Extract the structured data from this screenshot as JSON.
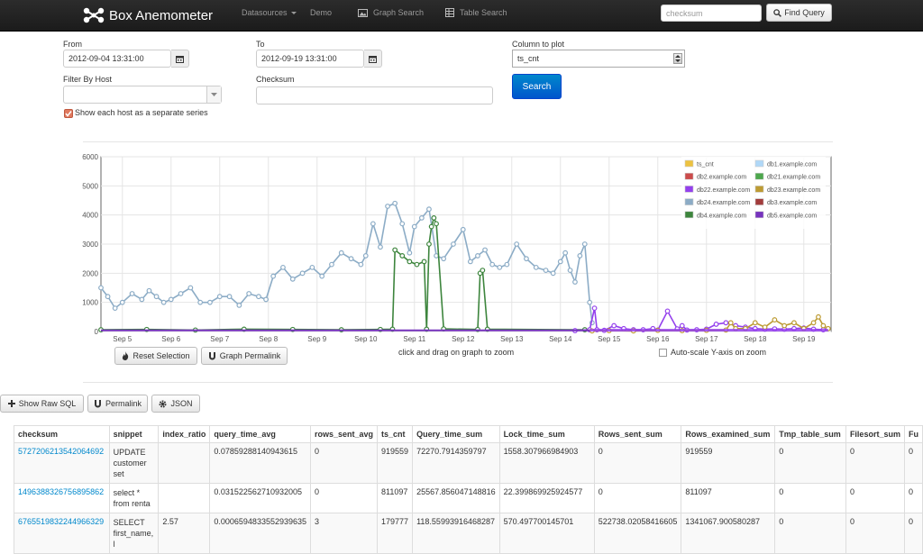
{
  "navbar": {
    "brand": "Box Anemometer",
    "items": [
      {
        "label": "Datasources",
        "dropdown": true
      },
      {
        "label": "Demo"
      },
      {
        "label": "Graph Search",
        "icon": "image-icon"
      },
      {
        "label": "Table Search",
        "icon": "table-icon"
      }
    ],
    "search_placeholder": "checksum",
    "find_label": "Find Query"
  },
  "form": {
    "from_label": "From",
    "from_value": "2012-09-04 13:31:00",
    "to_label": "To",
    "to_value": "2012-09-19 13:31:00",
    "column_label": "Column to plot",
    "column_value": "ts_cnt",
    "filter_label": "Filter By Host",
    "filter_value": "",
    "checksum_label": "Checksum",
    "checksum_value": "",
    "search_label": "Search",
    "separate_series_label": "Show each host as a separate series",
    "separate_series_checked": true
  },
  "chart_data": {
    "type": "line",
    "y_ticks": [
      "0",
      "1000",
      "2000",
      "3000",
      "4000",
      "5000",
      "6000"
    ],
    "ylim": [
      0,
      6000
    ],
    "x_ticks": [
      "Sep 5",
      "Sep 6",
      "Sep 7",
      "Sep 8",
      "Sep 9",
      "Sep 10",
      "Sep 11",
      "Sep 12",
      "Sep 13",
      "Sep 14",
      "Sep 15",
      "Sep 16",
      "Sep 17",
      "Sep 18",
      "Sep 19"
    ],
    "xlim": [
      "2012-09-04 13:31",
      "2012-09-19 13:31"
    ],
    "grid": true,
    "legend_placement": "top-right",
    "legend": [
      {
        "name": "ts_cnt",
        "color": "#edc240"
      },
      {
        "name": "db1.example.com",
        "color": "#afd8f8"
      },
      {
        "name": "db2.example.com",
        "color": "#cb4b4b"
      },
      {
        "name": "db21.example.com",
        "color": "#4da74d"
      },
      {
        "name": "db22.example.com",
        "color": "#9440ed"
      },
      {
        "name": "db23.example.com",
        "color": "#bd9b33"
      },
      {
        "name": "db24.example.com",
        "color": "#8cacc6"
      },
      {
        "name": "db3.example.com",
        "color": "#a23c3c"
      },
      {
        "name": "db4.example.com",
        "color": "#3d853d"
      },
      {
        "name": "db5.example.com",
        "color": "#7633bd"
      }
    ],
    "series": [
      {
        "name": "db24.example.com",
        "color": "#8cacc6",
        "x": [
          4.56,
          4.7,
          4.85,
          5.0,
          5.2,
          5.4,
          5.55,
          5.7,
          5.85,
          6.0,
          6.2,
          6.4,
          6.6,
          6.8,
          7.0,
          7.2,
          7.4,
          7.6,
          7.8,
          7.95,
          8.1,
          8.3,
          8.5,
          8.7,
          8.9,
          9.1,
          9.3,
          9.5,
          9.7,
          9.9,
          10.0,
          10.15,
          10.3,
          10.45,
          10.6,
          10.75,
          10.9,
          11.0,
          11.15,
          11.3,
          11.45,
          11.6,
          11.8,
          12.0,
          12.15,
          12.3,
          12.45,
          12.6,
          12.75,
          12.9,
          13.1,
          13.3,
          13.5,
          13.7,
          13.85,
          14.0,
          14.1,
          14.2,
          14.3,
          14.4,
          14.5,
          14.6,
          14.65
        ],
        "y": [
          1500,
          1200,
          800,
          1000,
          1300,
          1100,
          1400,
          1200,
          1000,
          1100,
          1300,
          1500,
          1000,
          1000,
          1200,
          1200,
          900,
          1300,
          1200,
          1100,
          1900,
          2200,
          1800,
          2000,
          2200,
          1900,
          2300,
          2700,
          2500,
          2300,
          2600,
          3700,
          2900,
          4300,
          4400,
          3700,
          2700,
          3600,
          3900,
          4200,
          2600,
          2500,
          3000,
          3500,
          2400,
          2600,
          2800,
          2300,
          2200,
          2300,
          3000,
          2500,
          2200,
          2100,
          2000,
          2400,
          2700,
          2100,
          1700,
          2600,
          3000,
          1000,
          300
        ]
      },
      {
        "name": "db4.example.com",
        "color": "#3d853d",
        "x": [
          4.56,
          5.5,
          6.5,
          7.5,
          8.5,
          9.5,
          10.3,
          10.55,
          10.6,
          10.75,
          10.9,
          11.05,
          11.2,
          11.25,
          11.3,
          11.35,
          11.4,
          11.45,
          11.6,
          12.3,
          12.35,
          12.4,
          12.5,
          14.5
        ],
        "y": [
          60,
          70,
          50,
          80,
          70,
          60,
          70,
          80,
          2800,
          2600,
          2400,
          2300,
          2400,
          80,
          3000,
          3600,
          3900,
          3700,
          90,
          70,
          2000,
          2100,
          80,
          60
        ]
      },
      {
        "name": "db22.example.com",
        "color": "#9440ed",
        "x": [
          14.3,
          14.6,
          14.7,
          14.75,
          14.9,
          15.1,
          15.3,
          15.5,
          15.7,
          15.9,
          16.0,
          16.2,
          16.4,
          16.5,
          16.6,
          16.8,
          17.0,
          17.2,
          17.4,
          17.6,
          17.8,
          18.0,
          18.2,
          18.4,
          18.6,
          18.8,
          19.0,
          19.2,
          19.4
        ],
        "y": [
          30,
          60,
          800,
          60,
          40,
          200,
          100,
          60,
          60,
          100,
          50,
          700,
          90,
          200,
          50,
          60,
          80,
          250,
          300,
          200,
          150,
          100,
          80,
          90,
          80,
          100,
          120,
          80,
          60
        ]
      },
      {
        "name": "db23.example.com",
        "color": "#bd9b33",
        "x": [
          14.65,
          15.0,
          15.5,
          16.0,
          16.5,
          17.0,
          17.4,
          17.5,
          17.6,
          17.8,
          18.0,
          18.2,
          18.4,
          18.6,
          18.8,
          19.0,
          19.2,
          19.3,
          19.4,
          19.5
        ],
        "y": [
          20,
          30,
          20,
          40,
          30,
          40,
          50,
          300,
          100,
          100,
          300,
          150,
          400,
          200,
          300,
          100,
          300,
          500,
          200,
          100
        ]
      }
    ]
  },
  "buttons": {
    "reset_selection": "Reset Selection",
    "graph_permalink": "Graph Permalink",
    "zoom_hint": "click and drag on graph to zoom",
    "autoscale_label": "Auto-scale Y-axis on zoom",
    "show_raw_sql": "Show Raw SQL",
    "permalink": "Permalink",
    "json": "JSON"
  },
  "table": {
    "headers": [
      "checksum",
      "snippet",
      "index_ratio",
      "query_time_avg",
      "rows_sent_avg",
      "ts_cnt",
      "Query_time_sum",
      "Lock_time_sum",
      "Rows_sent_sum",
      "Rows_examined_sum",
      "Tmp_table_sum",
      "Filesort_sum",
      "Fu"
    ],
    "rows": [
      [
        "5727206213542064692",
        "UPDATE customer set",
        "",
        "0.07859288140943615",
        "0",
        "919559",
        "72270.7914359797",
        "1558.307966984903",
        "0",
        "919559",
        "0",
        "0",
        "0"
      ],
      [
        "1496388326756895862",
        "select * from renta",
        "",
        "0.031522562710932005",
        "0",
        "811097",
        "25567.856047148816",
        "22.399869925924577",
        "0",
        "811097",
        "0",
        "0",
        "0"
      ],
      [
        "6765519832244966329",
        "SELECT first_name, l",
        "2.57",
        "0.0006594833552939635",
        "3",
        "179777",
        "118.55993916468287",
        "570.497700145701",
        "522738.02058416605",
        "1341067.900580287",
        "0",
        "0",
        "0"
      ]
    ]
  }
}
